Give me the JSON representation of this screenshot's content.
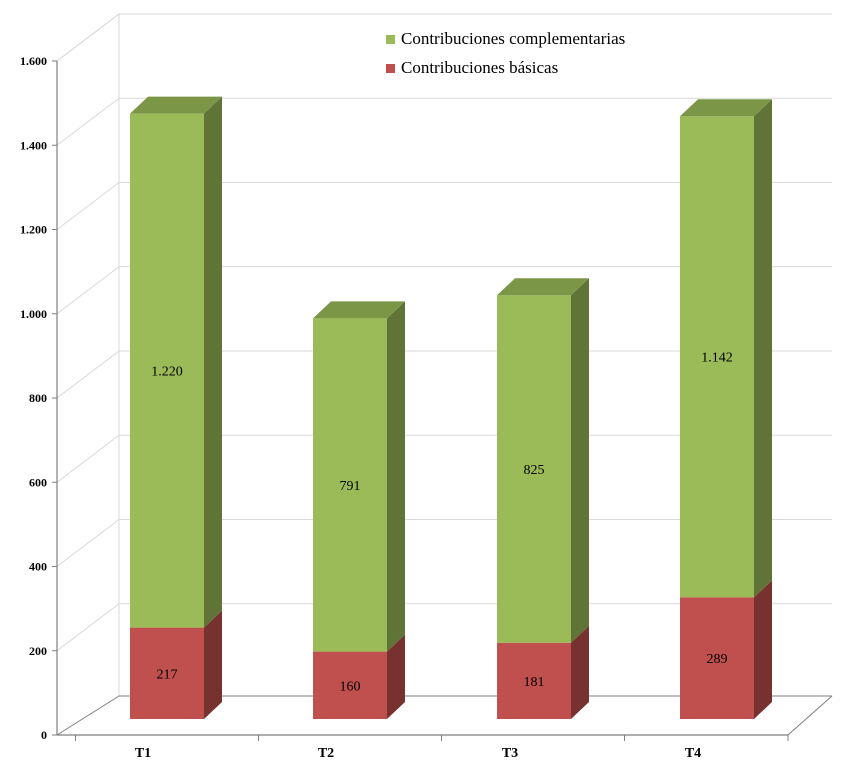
{
  "chart_data": {
    "type": "bar",
    "stacked": true,
    "style": "3d",
    "title": "",
    "xlabel": "",
    "ylabel": "",
    "categories": [
      "T1",
      "T2",
      "T3",
      "T4"
    ],
    "series": [
      {
        "name": "Contribuciones básicas",
        "values": [
          217,
          160,
          181,
          289
        ],
        "labels": [
          "217",
          "160",
          "181",
          "289"
        ],
        "color": "#c0504d"
      },
      {
        "name": "Contribuciones complementarias",
        "values": [
          1220,
          791,
          825,
          1142
        ],
        "labels": [
          "1.220",
          "791",
          "825",
          "1.142"
        ],
        "color": "#9bbb59"
      }
    ],
    "ylim": [
      0,
      1600
    ],
    "yticks": [
      {
        "value": 0,
        "label": "0"
      },
      {
        "value": 200,
        "label": "200"
      },
      {
        "value": 400,
        "label": "400"
      },
      {
        "value": 600,
        "label": "600"
      },
      {
        "value": 800,
        "label": "800"
      },
      {
        "value": 1000,
        "label": "1.000"
      },
      {
        "value": 1200,
        "label": "1.200"
      },
      {
        "value": 1400,
        "label": "1.400"
      },
      {
        "value": 1600,
        "label": "1.600"
      }
    ],
    "legend": {
      "position": "top-right",
      "order": [
        "Contribuciones complementarias",
        "Contribuciones básicas"
      ]
    },
    "grid": true
  }
}
